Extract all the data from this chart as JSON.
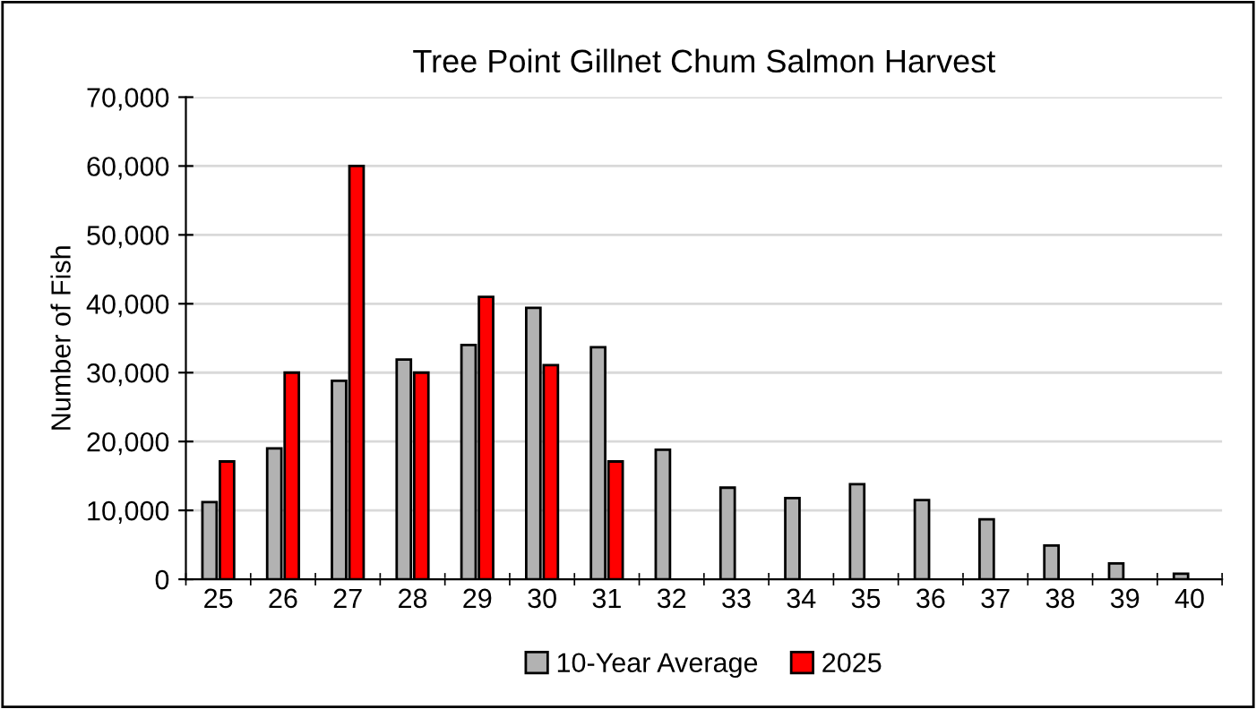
{
  "chart_data": {
    "type": "bar",
    "title": "Tree Point Gillnet Chum Salmon Harvest",
    "ylabel": "Number of Fish",
    "categories": [
      "25",
      "26",
      "27",
      "28",
      "29",
      "30",
      "31",
      "32",
      "33",
      "34",
      "35",
      "36",
      "37",
      "38",
      "39",
      "40"
    ],
    "series": [
      {
        "name": "10-Year Average",
        "color": "#b2b2b2",
        "values": [
          11200,
          19000,
          28800,
          31900,
          34000,
          39400,
          33700,
          18800,
          13300,
          11800,
          13800,
          11500,
          8700,
          4900,
          2300,
          800
        ]
      },
      {
        "name": "2025",
        "color": "#ff0000",
        "values": [
          17100,
          30000,
          60000,
          30000,
          41000,
          31100,
          17100,
          null,
          null,
          null,
          null,
          null,
          null,
          null,
          null,
          null
        ]
      }
    ],
    "ylim": [
      0,
      70000
    ],
    "yticks": [
      {
        "value": 0,
        "label": "0"
      },
      {
        "value": 10000,
        "label": "10,000"
      },
      {
        "value": 20000,
        "label": "20,000"
      },
      {
        "value": 30000,
        "label": "30,000"
      },
      {
        "value": 40000,
        "label": "40,000"
      },
      {
        "value": 50000,
        "label": "50,000"
      },
      {
        "value": 60000,
        "label": "60,000"
      },
      {
        "value": 70000,
        "label": "70,000"
      }
    ],
    "grid": "y",
    "legend": "bottom"
  }
}
